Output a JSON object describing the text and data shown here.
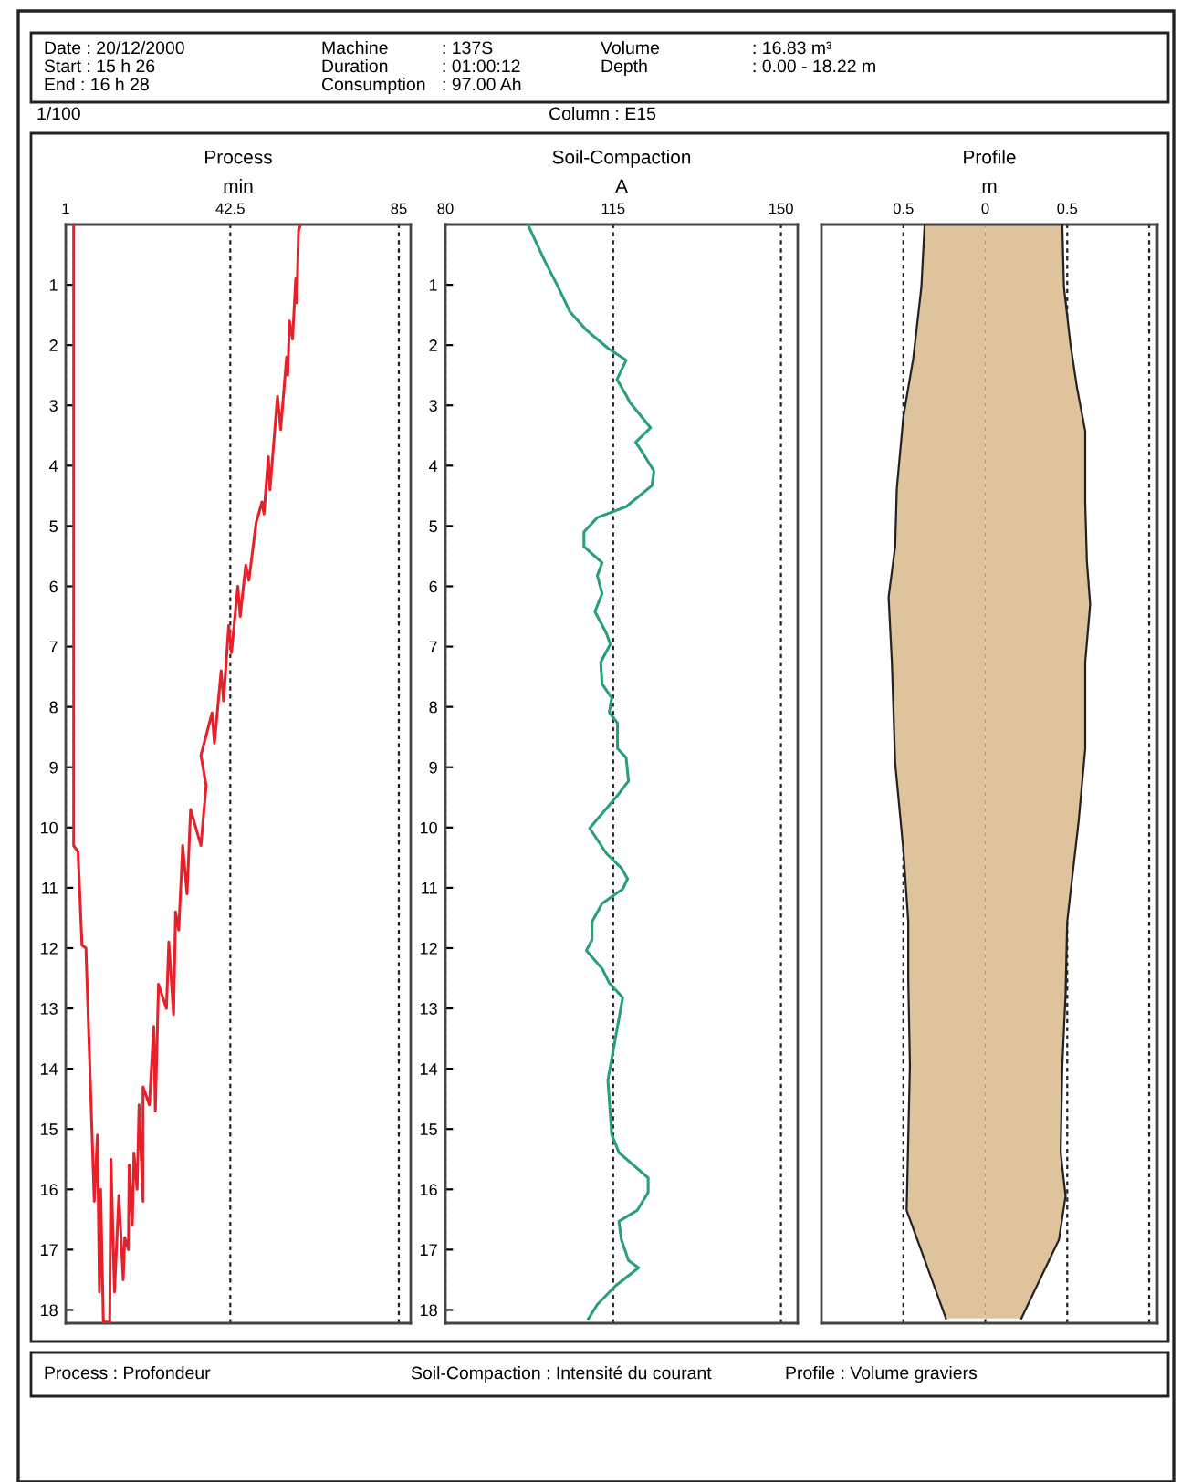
{
  "chart_data": [
    {
      "type": "line",
      "orientation": "horizontal",
      "title": "Process",
      "xlabel": "min",
      "xlim": [
        1,
        88
      ],
      "xticks": [
        1,
        42.5,
        85
      ],
      "ylim": [
        18.22,
        0
      ],
      "yticks": [
        1,
        2,
        3,
        4,
        5,
        6,
        7,
        8,
        9,
        10,
        11,
        12,
        13,
        14,
        15,
        16,
        17,
        18
      ],
      "grid": "x",
      "series": [
        {
          "color": "#e8202a",
          "x": [
            0,
            10.3,
            10.4,
            11.95,
            12.0,
            16.2,
            15.1,
            17.7,
            16.0,
            18.2,
            18.2,
            15.5,
            17.7,
            16.1,
            17.5,
            16.8,
            17.0,
            15.6,
            16.6,
            15.4,
            16.0,
            14.6,
            16.2,
            14.3,
            14.6,
            13.3,
            14.7,
            12.6,
            13.0,
            11.9,
            13.1,
            11.4,
            11.7,
            10.3,
            11.1,
            9.7,
            10.3,
            9.3,
            8.8,
            8.1,
            8.6,
            7.4,
            7.9,
            6.65,
            7.1,
            6.0,
            6.5,
            5.65,
            5.9,
            4.95,
            4.6,
            4.8,
            3.85,
            4.4,
            2.85,
            3.4,
            2.2,
            2.5,
            1.6,
            1.9,
            0.9,
            1.3,
            0.1,
            0
          ],
          "values": [
            3.0,
            3.0,
            4.1,
            5.1,
            6.1,
            8.2,
            9.0,
            9.5,
            9.8,
            10.5,
            12.1,
            12.4,
            13.3,
            14.4,
            15.5,
            15.9,
            16.8,
            17.0,
            17.8,
            18.2,
            19.0,
            19.5,
            20.5,
            20.5,
            22.1,
            23.2,
            23.6,
            24.4,
            26.4,
            27.0,
            28.2,
            28.7,
            29.5,
            30.5,
            31.6,
            32.5,
            35.1,
            36.4,
            35.1,
            37.9,
            38.5,
            40.2,
            40.8,
            42.1,
            42.8,
            44.4,
            45.0,
            46.4,
            47.2,
            49.0,
            50.5,
            51.0,
            52.1,
            52.5,
            54.4,
            55.2,
            56.7,
            57.0,
            57.4,
            58.2,
            59.0,
            59.3,
            59.7,
            60.2
          ]
        }
      ],
      "annotations": [
        "Date : 20/12/2000",
        "Start : 15 h 26",
        "End : 16 h 28",
        "Machine",
        ": 137S",
        "Duration",
        ": 01:00:12",
        "Consumption",
        ": 97.00 Ah",
        "Volume",
        ": 16.83 m³",
        "Depth",
        ": 0.00 - 18.22 m",
        "1/100",
        "Column : E15",
        "Process : Profondeur"
      ]
    },
    {
      "type": "line",
      "orientation": "horizontal",
      "title": "Soil-Compaction",
      "xlabel": "A",
      "xlim": [
        80,
        153.5
      ],
      "xticks": [
        80,
        115,
        150
      ],
      "ylim": [
        18.22,
        0
      ],
      "yticks": [
        1,
        2,
        3,
        4,
        5,
        6,
        7,
        8,
        9,
        10,
        11,
        12,
        13,
        14,
        15,
        16,
        17,
        18
      ],
      "grid": "x",
      "series": [
        {
          "color": "#2aa173",
          "x": [
            0,
            0.6,
            1.0,
            1.3,
            1.45,
            1.75,
            2.05,
            2.25,
            2.57,
            2.83,
            2.95,
            3.37,
            3.61,
            3.79,
            4.09,
            4.33,
            4.68,
            4.86,
            5.1,
            5.34,
            5.61,
            5.82,
            6.12,
            6.42,
            6.78,
            6.96,
            7.26,
            7.62,
            7.85,
            8.09,
            8.27,
            8.69,
            8.84,
            9.23,
            9.47,
            10.01,
            10.43,
            10.67,
            10.85,
            11.02,
            11.26,
            11.56,
            11.86,
            12.04,
            12.34,
            12.58,
            12.82,
            13.48,
            14.19,
            15.09,
            15.39,
            15.81,
            16.05,
            16.35,
            16.53,
            16.83,
            17.18,
            17.3,
            17.6,
            17.91,
            18.15
          ],
          "values": [
            97.2,
            100.7,
            103.3,
            105.1,
            106.0,
            109.4,
            113.9,
            117.7,
            115.8,
            117.7,
            118.5,
            122.8,
            119.7,
            121.2,
            123.5,
            123.1,
            117.7,
            111.7,
            108.9,
            108.9,
            112.7,
            111.7,
            112.7,
            111.2,
            113.6,
            114.4,
            112.4,
            112.7,
            114.7,
            114.2,
            115.9,
            115.9,
            117.7,
            118.2,
            115.9,
            110.1,
            113.6,
            116.7,
            118.0,
            117.0,
            112.7,
            110.6,
            110.6,
            109.4,
            112.7,
            114.2,
            117.0,
            115.5,
            113.9,
            114.7,
            116.2,
            122.3,
            122.3,
            120.0,
            116.2,
            116.7,
            118.2,
            120.3,
            115.5,
            111.7,
            109.8
          ]
        }
      ],
      "annotations": [
        "Soil-Compaction : Intensité du courant"
      ]
    },
    {
      "type": "area",
      "orientation": "horizontal",
      "title": "Profile",
      "xlabel": "m",
      "xlim": [
        -1,
        1.05
      ],
      "xticks": [
        {
          "value": -0.5,
          "label": "0.5"
        },
        0,
        0.5,
        {
          "value": 1,
          "label": null
        }
      ],
      "ylim": [
        18.22,
        0
      ],
      "yticks": [
        1,
        2,
        3,
        4,
        5,
        6,
        7,
        8,
        9,
        10,
        11,
        12,
        13,
        14,
        15,
        16,
        17,
        18
      ],
      "grid": "x",
      "tick_labels": "x",
      "series": [
        {
          "color": "#dfc39d",
          "x": [
            0,
            1.04,
            2.23,
            3.19,
            4.38,
            5.34,
            6.18,
            7.26,
            8.93,
            10.37,
            11.56,
            12.52,
            13.95,
            15.15,
            16.35,
            18.14
          ],
          "values": [
            -0.37,
            -0.39,
            -0.44,
            -0.5,
            -0.54,
            -0.55,
            -0.59,
            -0.57,
            -0.55,
            -0.5,
            -0.47,
            -0.47,
            -0.46,
            -0.47,
            -0.48,
            -0.24
          ]
        },
        {
          "color": "#dfc39d",
          "x": [
            0,
            1.04,
            1.99,
            2.71,
            3.43,
            4.62,
            5.58,
            6.3,
            7.26,
            8.69,
            9.89,
            10.84,
            11.56,
            12.76,
            13.95,
            15.39,
            16.11,
            16.83,
            18.14
          ],
          "values": [
            0.47,
            0.48,
            0.52,
            0.56,
            0.61,
            0.61,
            0.62,
            0.64,
            0.61,
            0.61,
            0.57,
            0.53,
            0.5,
            0.49,
            0.47,
            0.46,
            0.49,
            0.45,
            0.22
          ]
        }
      ],
      "annotations": [
        "Profile : Volume graviers"
      ]
    }
  ]
}
